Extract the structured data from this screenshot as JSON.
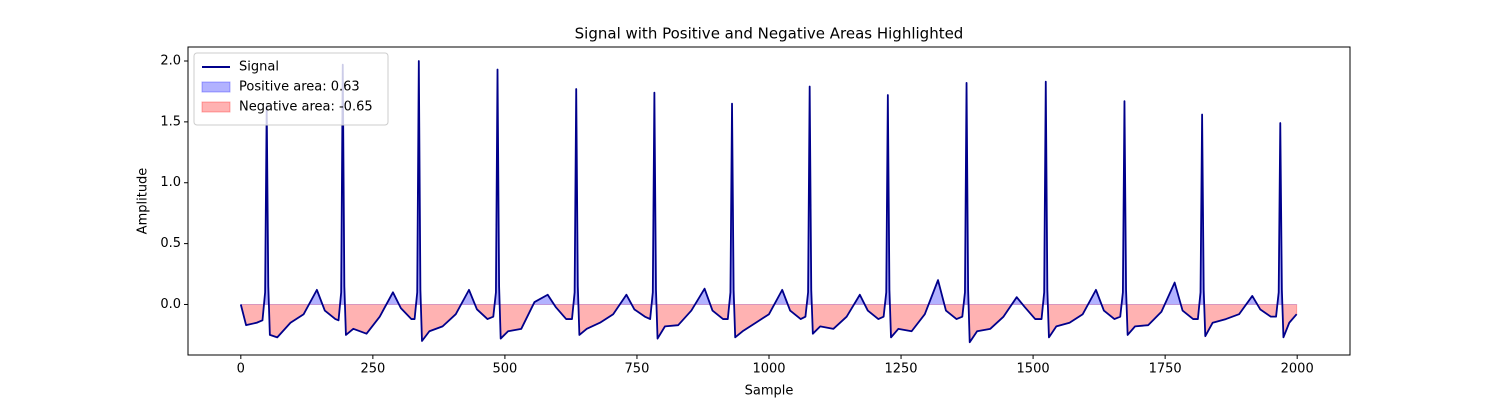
{
  "chart_data": {
    "type": "line",
    "title": "Signal with Positive and Negative Areas Highlighted",
    "xlabel": "Sample",
    "ylabel": "Amplitude",
    "x": [
      0,
      10,
      30,
      41,
      46,
      49,
      52,
      55,
      69,
      94,
      119,
      144,
      159,
      179,
      185,
      190,
      193,
      196,
      199,
      213,
      238,
      263,
      288,
      303,
      323,
      329,
      334,
      337,
      340,
      343,
      357,
      382,
      407,
      432,
      447,
      467,
      478,
      483,
      486,
      489,
      492,
      506,
      531,
      556,
      581,
      596,
      616,
      627,
      632,
      635,
      638,
      641,
      655,
      680,
      705,
      730,
      745,
      765,
      775,
      780,
      783,
      786,
      789,
      803,
      828,
      853,
      878,
      893,
      913,
      922,
      927,
      930,
      933,
      936,
      950,
      975,
      1000,
      1025,
      1040,
      1060,
      1069,
      1074,
      1077,
      1080,
      1083,
      1097,
      1122,
      1147,
      1172,
      1187,
      1207,
      1217,
      1222,
      1225,
      1228,
      1231,
      1245,
      1270,
      1295,
      1320,
      1335,
      1355,
      1366,
      1371,
      1374,
      1377,
      1380,
      1394,
      1419,
      1444,
      1469,
      1484,
      1504,
      1516,
      1521,
      1524,
      1527,
      1530,
      1544,
      1569,
      1594,
      1619,
      1634,
      1654,
      1665,
      1670,
      1673,
      1676,
      1679,
      1693,
      1718,
      1743,
      1768,
      1783,
      1803,
      1812,
      1817,
      1820,
      1823,
      1826,
      1840,
      1865,
      1890,
      1915,
      1930,
      1950,
      1960,
      1965,
      1968,
      1971,
      1974,
      1985,
      1999
    ],
    "series": [
      {
        "name": "Signal",
        "color": "#00008b",
        "values": [
          0.0,
          -0.17,
          -0.15,
          -0.13,
          0.1,
          1.63,
          0.15,
          -0.25,
          -0.27,
          -0.15,
          -0.08,
          0.12,
          -0.05,
          -0.12,
          -0.13,
          0.1,
          1.97,
          0.15,
          -0.25,
          -0.2,
          -0.24,
          -0.1,
          0.1,
          -0.03,
          -0.12,
          -0.12,
          0.1,
          2.0,
          0.12,
          -0.3,
          -0.22,
          -0.18,
          -0.08,
          0.12,
          -0.04,
          -0.12,
          -0.1,
          0.1,
          1.93,
          0.15,
          -0.28,
          -0.22,
          -0.2,
          0.02,
          0.08,
          -0.02,
          -0.12,
          -0.12,
          0.1,
          1.77,
          0.15,
          -0.25,
          -0.2,
          -0.15,
          -0.08,
          0.08,
          -0.04,
          -0.1,
          -0.12,
          0.1,
          1.74,
          0.12,
          -0.28,
          -0.18,
          -0.17,
          -0.05,
          0.13,
          -0.05,
          -0.12,
          -0.12,
          0.1,
          1.65,
          0.12,
          -0.27,
          -0.22,
          -0.15,
          -0.08,
          0.12,
          -0.05,
          -0.12,
          -0.1,
          0.1,
          1.79,
          0.12,
          -0.24,
          -0.18,
          -0.2,
          -0.1,
          0.08,
          -0.05,
          -0.12,
          -0.1,
          0.1,
          1.72,
          0.12,
          -0.27,
          -0.2,
          -0.22,
          -0.08,
          0.2,
          -0.05,
          -0.12,
          -0.1,
          0.1,
          1.82,
          0.12,
          -0.31,
          -0.22,
          -0.2,
          -0.1,
          0.06,
          -0.02,
          -0.12,
          -0.12,
          0.1,
          1.83,
          0.12,
          -0.27,
          -0.18,
          -0.15,
          -0.08,
          0.12,
          -0.05,
          -0.12,
          -0.1,
          0.1,
          1.67,
          0.12,
          -0.25,
          -0.18,
          -0.17,
          -0.06,
          0.18,
          -0.05,
          -0.12,
          -0.12,
          0.1,
          1.56,
          0.12,
          -0.26,
          -0.15,
          -0.12,
          -0.08,
          0.07,
          -0.04,
          -0.1,
          -0.1,
          0.1,
          1.49,
          0.12,
          -0.27,
          -0.15,
          -0.08
        ]
      }
    ],
    "areas": [
      {
        "name": "Positive area: 0.63",
        "color": "#0000ff"
      },
      {
        "name": "Negative area: -0.65",
        "color": "#ff0000"
      }
    ],
    "legend": "upper left",
    "xlim": [
      -100,
      2100
    ],
    "xticks": [
      0,
      250,
      500,
      750,
      1000,
      1250,
      1500,
      1750,
      2000
    ],
    "ylim": [
      -0.415,
      2.115
    ],
    "yticks": [
      {
        "value": 0,
        "label": "0.0"
      },
      {
        "value": 0.5,
        "label": "0.5"
      },
      {
        "value": 1,
        "label": "1.0"
      },
      {
        "value": 1.5,
        "label": "1.5"
      },
      {
        "value": 2,
        "label": "2.0"
      }
    ],
    "grid": false
  }
}
